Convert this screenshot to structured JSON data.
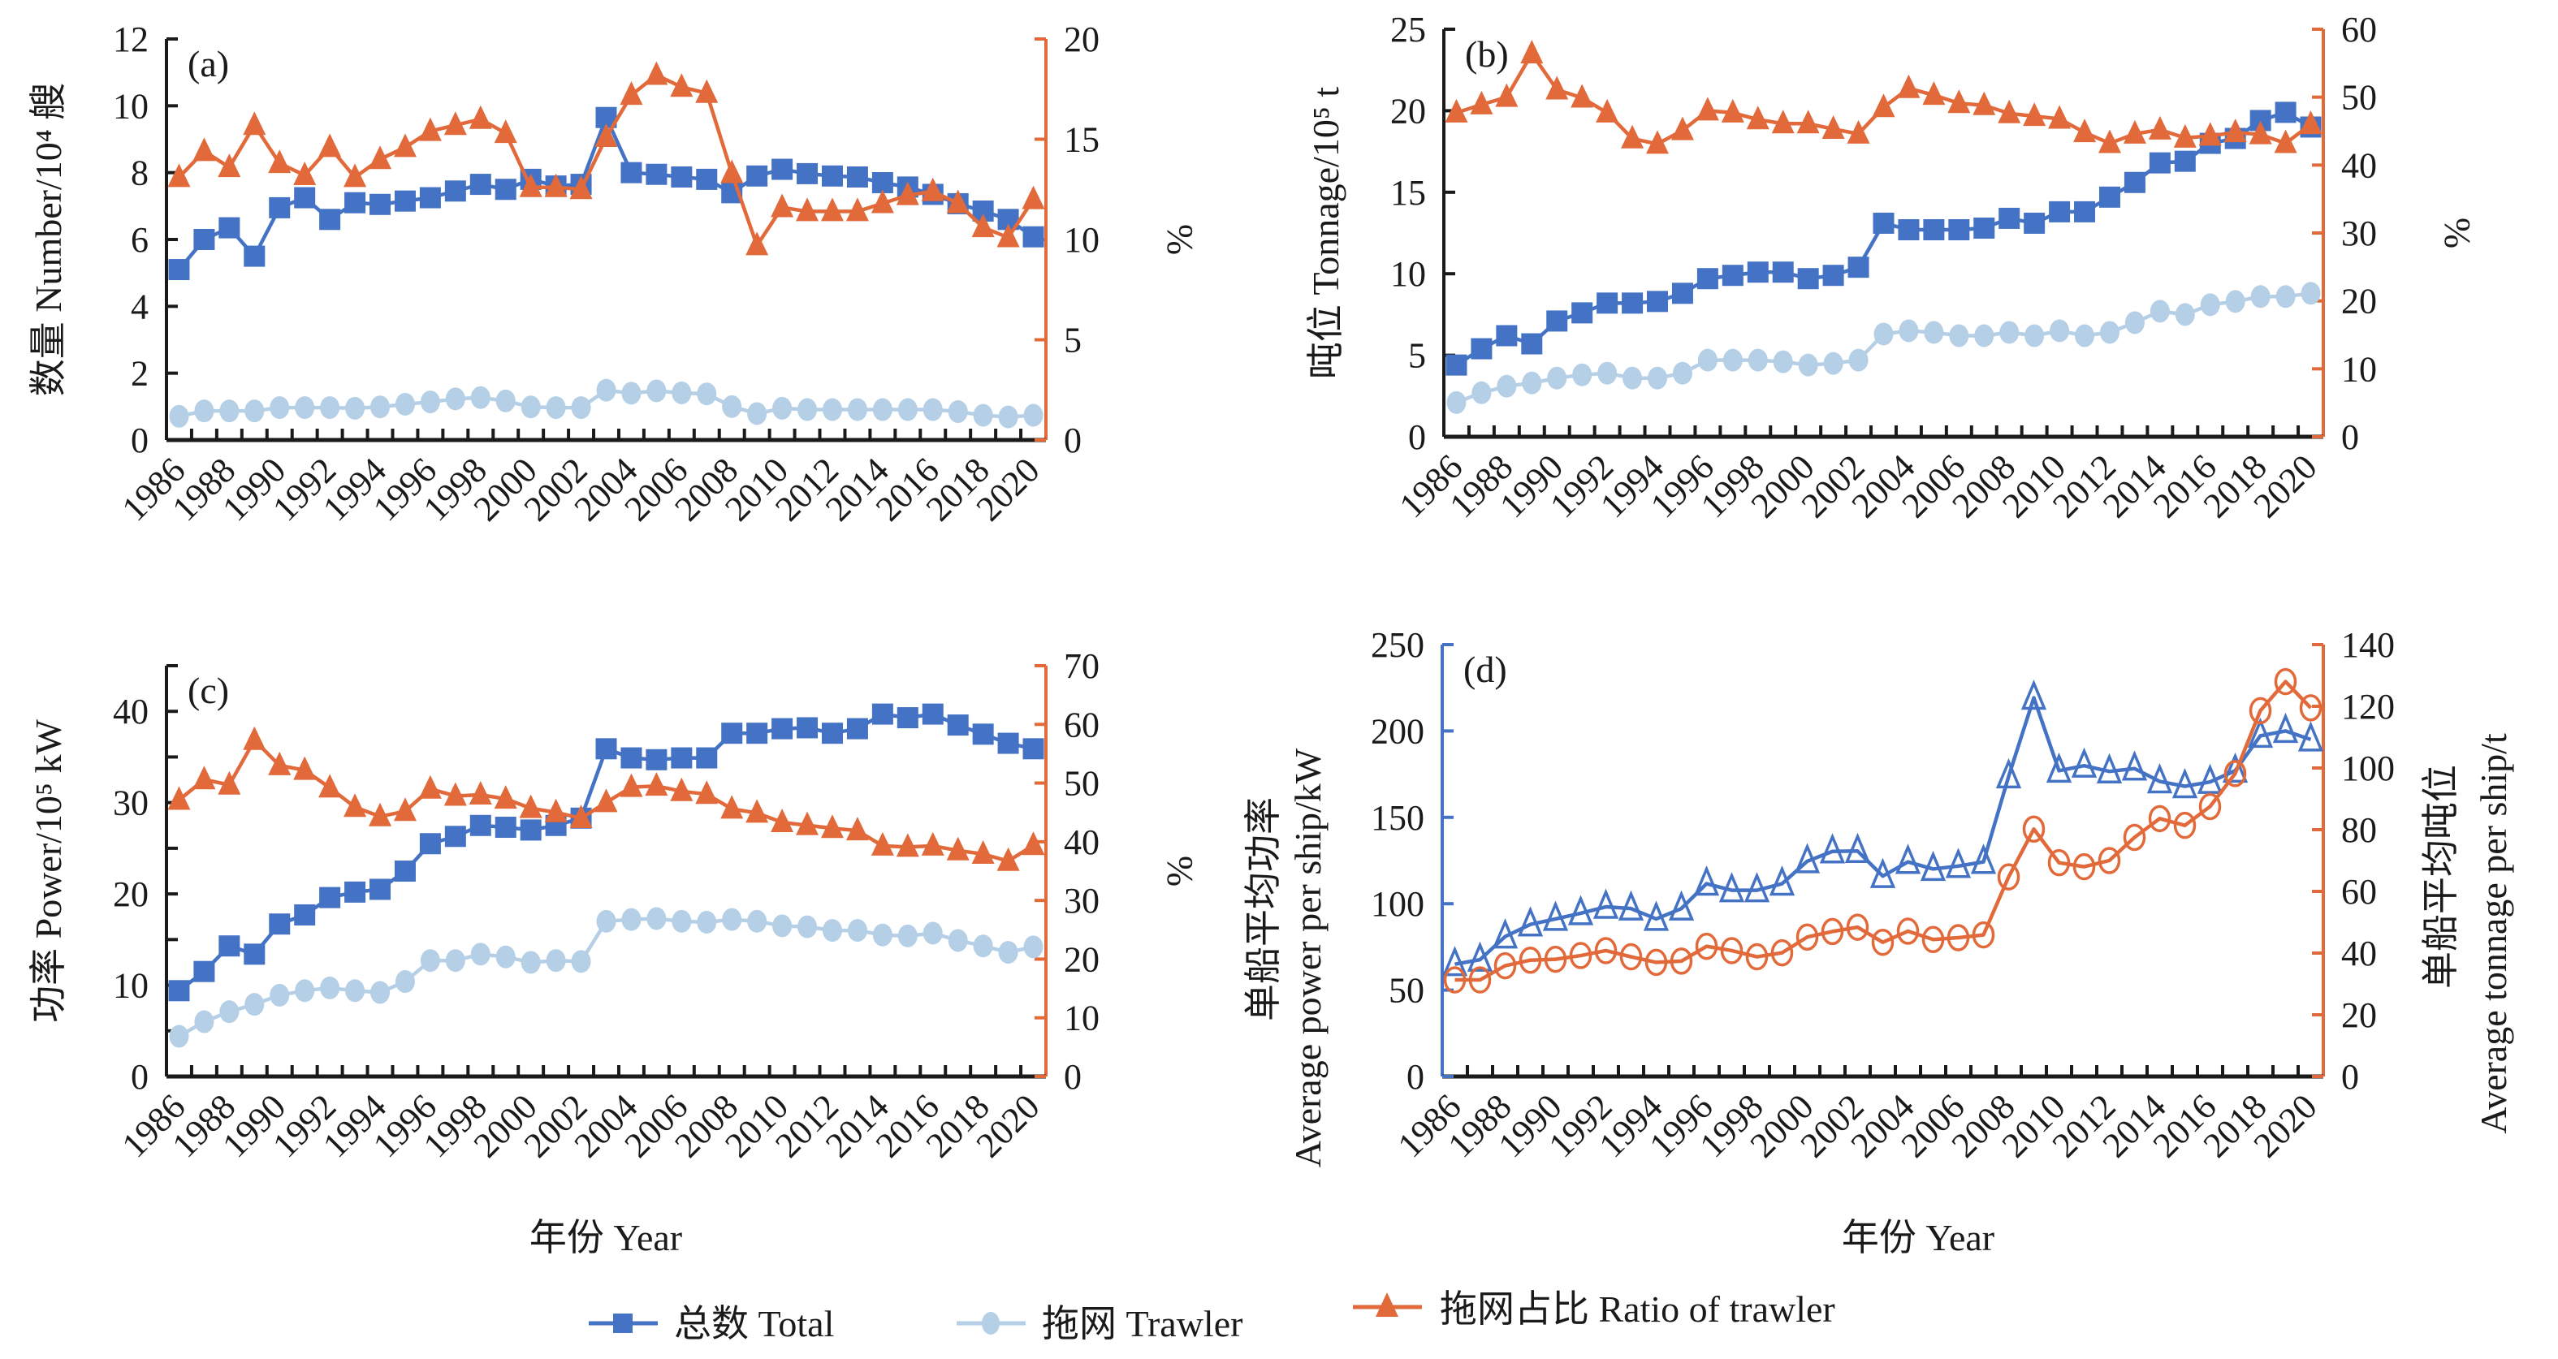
{
  "colors": {
    "total": "#4472C4",
    "trawler": "#B4CFE6",
    "ratio": "#E2693A",
    "axis": "#1a1a1a",
    "avg_power": "#4472C4",
    "avg_tonnage": "#E2693A"
  },
  "legend": {
    "total": "总数 Total",
    "trawler": "拖网 Trawler",
    "ratio": "拖网占比 Ratio of trawler"
  },
  "xaxis_title": "年份 Year",
  "chart_data": [
    {
      "id": "a",
      "type": "line",
      "panel_label": "(a)",
      "title": "",
      "x": [
        1986,
        1987,
        1988,
        1989,
        1990,
        1991,
        1992,
        1993,
        1994,
        1995,
        1996,
        1997,
        1998,
        1999,
        2000,
        2001,
        2002,
        2003,
        2004,
        2005,
        2006,
        2007,
        2008,
        2009,
        2010,
        2011,
        2012,
        2013,
        2014,
        2015,
        2016,
        2017,
        2018,
        2019,
        2020
      ],
      "xtick_labels": [
        "1986",
        "1988",
        "1990",
        "1992",
        "1994",
        "1996",
        "1998",
        "2000",
        "2002",
        "2004",
        "2006",
        "2008",
        "2010",
        "2012",
        "2014",
        "2016",
        "2018",
        "2020"
      ],
      "ylabel": "数量 Number/10⁴ 艘",
      "ylim": [
        0,
        12
      ],
      "yticks": [
        0,
        2,
        4,
        6,
        8,
        10,
        12
      ],
      "y2label": "%",
      "y2lim": [
        0,
        20
      ],
      "y2ticks": [
        0,
        5,
        10,
        15,
        20
      ],
      "series": [
        {
          "name": "总数 Total",
          "axis": "left",
          "marker": "square-filled",
          "color_key": "total",
          "values": [
            5.1,
            6.0,
            6.35,
            5.5,
            6.95,
            7.25,
            6.6,
            7.1,
            7.05,
            7.15,
            7.25,
            7.45,
            7.65,
            7.5,
            7.8,
            7.6,
            7.65,
            9.65,
            8.0,
            7.95,
            7.87,
            7.8,
            7.4,
            7.9,
            8.1,
            7.97,
            7.9,
            7.87,
            7.7,
            7.57,
            7.35,
            7.07,
            6.85,
            6.6,
            6.08
          ]
        },
        {
          "name": "拖网 Trawler",
          "axis": "left",
          "marker": "circle-filled",
          "color_key": "trawler",
          "values": [
            0.71,
            0.87,
            0.87,
            0.87,
            0.97,
            0.97,
            0.97,
            0.95,
            0.99,
            1.07,
            1.14,
            1.23,
            1.27,
            1.17,
            0.99,
            0.97,
            0.97,
            1.49,
            1.4,
            1.47,
            1.41,
            1.38,
            1.0,
            0.79,
            0.95,
            0.91,
            0.91,
            0.91,
            0.91,
            0.91,
            0.91,
            0.85,
            0.74,
            0.69,
            0.74
          ]
        },
        {
          "name": "拖网占比 Ratio of trawler",
          "axis": "right",
          "marker": "triangle-filled",
          "color_key": "ratio",
          "values": [
            13.1,
            14.4,
            13.6,
            15.7,
            13.8,
            13.2,
            14.6,
            13.1,
            14.0,
            14.6,
            15.4,
            15.7,
            16.0,
            15.3,
            12.6,
            12.6,
            12.5,
            15.1,
            17.2,
            18.2,
            17.6,
            17.3,
            13.3,
            9.7,
            11.6,
            11.4,
            11.4,
            11.4,
            11.8,
            12.2,
            12.4,
            11.8,
            10.6,
            10.1,
            12.0
          ]
        }
      ]
    },
    {
      "id": "b",
      "type": "line",
      "panel_label": "(b)",
      "title": "",
      "x": [
        1986,
        1987,
        1988,
        1989,
        1990,
        1991,
        1992,
        1993,
        1994,
        1995,
        1996,
        1997,
        1998,
        1999,
        2000,
        2001,
        2002,
        2003,
        2004,
        2005,
        2006,
        2007,
        2008,
        2009,
        2010,
        2011,
        2012,
        2013,
        2014,
        2015,
        2016,
        2017,
        2018,
        2019,
        2020
      ],
      "xtick_labels": [
        "1986",
        "1988",
        "1990",
        "1992",
        "1994",
        "1996",
        "1998",
        "2000",
        "2002",
        "2004",
        "2006",
        "2008",
        "2010",
        "2012",
        "2014",
        "2016",
        "2018",
        "2020"
      ],
      "ylabel": "吨位 Tonnage/10⁵ t",
      "ylim": [
        0,
        25
      ],
      "yticks": [
        0,
        5,
        10,
        15,
        20,
        25
      ],
      "y2label": "%",
      "y2lim": [
        0,
        60
      ],
      "y2ticks": [
        0,
        10,
        20,
        30,
        40,
        50,
        60
      ],
      "series": [
        {
          "name": "总数 Total",
          "axis": "left",
          "marker": "square-filled",
          "color_key": "total",
          "values": [
            4.4,
            5.4,
            6.2,
            5.7,
            7.1,
            7.6,
            8.2,
            8.2,
            8.3,
            8.8,
            9.7,
            9.9,
            10.1,
            10.1,
            9.7,
            9.9,
            10.4,
            13.1,
            12.7,
            12.7,
            12.7,
            12.8,
            13.4,
            13.1,
            13.8,
            13.8,
            14.7,
            15.6,
            16.8,
            16.9,
            18.0,
            18.3,
            19.4,
            19.9,
            19.0
          ]
        },
        {
          "name": "拖网 Trawler",
          "axis": "left",
          "marker": "circle-filled",
          "color_key": "trawler",
          "values": [
            2.1,
            2.7,
            3.1,
            3.3,
            3.6,
            3.8,
            3.9,
            3.6,
            3.6,
            3.9,
            4.7,
            4.7,
            4.7,
            4.6,
            4.4,
            4.5,
            4.7,
            6.3,
            6.5,
            6.4,
            6.2,
            6.2,
            6.4,
            6.2,
            6.5,
            6.2,
            6.4,
            7.0,
            7.7,
            7.5,
            8.1,
            8.3,
            8.6,
            8.6,
            8.8
          ]
        },
        {
          "name": "拖网占比 Ratio of trawler",
          "axis": "right",
          "marker": "triangle-filled",
          "color_key": "ratio",
          "values": [
            47.7,
            48.9,
            50.0,
            56.4,
            51.1,
            49.9,
            47.7,
            43.9,
            43.1,
            45.1,
            48.0,
            47.7,
            46.7,
            46.1,
            46.1,
            45.3,
            44.6,
            48.5,
            51.3,
            50.3,
            49.1,
            48.8,
            47.6,
            47.2,
            46.8,
            44.8,
            43.2,
            44.6,
            45.2,
            44.0,
            44.3,
            44.8,
            44.5,
            43.2,
            46.0
          ]
        }
      ]
    },
    {
      "id": "c",
      "type": "line",
      "panel_label": "(c)",
      "title": "",
      "x": [
        1986,
        1987,
        1988,
        1989,
        1990,
        1991,
        1992,
        1993,
        1994,
        1995,
        1996,
        1997,
        1998,
        1999,
        2000,
        2001,
        2002,
        2003,
        2004,
        2005,
        2006,
        2007,
        2008,
        2009,
        2010,
        2011,
        2012,
        2013,
        2014,
        2015,
        2016,
        2017,
        2018,
        2019,
        2020
      ],
      "xtick_labels": [
        "1986",
        "1988",
        "1990",
        "1992",
        "1994",
        "1996",
        "1998",
        "2000",
        "2002",
        "2004",
        "2006",
        "2008",
        "2010",
        "2012",
        "2014",
        "2016",
        "2018",
        "2020"
      ],
      "xlabel": "年份 Year",
      "ylabel": "功率 Power/10⁵ kW",
      "ylim": [
        0,
        45
      ],
      "yticks": [
        0,
        10,
        20,
        30,
        40
      ],
      "yminor_ticks": [
        5,
        15,
        25,
        35,
        45
      ],
      "y2label": "%",
      "y2lim": [
        0,
        70
      ],
      "y2ticks": [
        0,
        10,
        20,
        30,
        40,
        50,
        60,
        70
      ],
      "series": [
        {
          "name": "总数 Total",
          "axis": "left",
          "marker": "square-filled",
          "color_key": "total",
          "values": [
            9.4,
            11.5,
            14.3,
            13.4,
            16.7,
            17.7,
            19.6,
            20.2,
            20.5,
            22.5,
            25.5,
            26.3,
            27.5,
            27.3,
            27.0,
            27.5,
            28.3,
            35.9,
            34.9,
            34.7,
            34.9,
            34.9,
            37.6,
            37.6,
            38.1,
            38.2,
            37.6,
            38.1,
            39.7,
            39.3,
            39.7,
            38.5,
            37.5,
            36.5,
            35.9
          ]
        },
        {
          "name": "拖网 Trawler",
          "axis": "left",
          "marker": "circle-filled",
          "color_key": "trawler",
          "values": [
            4.4,
            6.0,
            7.1,
            7.9,
            8.9,
            9.4,
            9.7,
            9.4,
            9.2,
            10.4,
            12.7,
            12.7,
            13.4,
            13.1,
            12.5,
            12.7,
            12.6,
            17.0,
            17.2,
            17.3,
            17.0,
            16.9,
            17.2,
            17.0,
            16.5,
            16.4,
            16.0,
            16.0,
            15.5,
            15.4,
            15.7,
            14.9,
            14.3,
            13.6,
            14.2
          ]
        },
        {
          "name": "拖网占比 Ratio of trawler",
          "axis": "right",
          "marker": "triangle-filled",
          "color_key": "ratio",
          "values": [
            47.1,
            50.6,
            49.7,
            57.3,
            53.0,
            52.2,
            49.2,
            45.9,
            44.3,
            45.2,
            49.0,
            47.8,
            48.0,
            47.3,
            45.7,
            45.0,
            44.0,
            46.7,
            49.3,
            49.5,
            48.6,
            48.1,
            45.6,
            44.9,
            43.3,
            42.8,
            42.3,
            41.9,
            39.3,
            39.1,
            39.3,
            38.5,
            37.9,
            36.7,
            39.4
          ]
        }
      ]
    },
    {
      "id": "d",
      "type": "line",
      "panel_label": "(d)",
      "title": "",
      "x": [
        1986,
        1987,
        1988,
        1989,
        1990,
        1991,
        1992,
        1993,
        1994,
        1995,
        1996,
        1997,
        1998,
        1999,
        2000,
        2001,
        2002,
        2003,
        2004,
        2005,
        2006,
        2007,
        2008,
        2009,
        2010,
        2011,
        2012,
        2013,
        2014,
        2015,
        2016,
        2017,
        2018,
        2019,
        2020
      ],
      "xtick_labels": [
        "1986",
        "1988",
        "1990",
        "1992",
        "1994",
        "1996",
        "1998",
        "2000",
        "2002",
        "2004",
        "2006",
        "2008",
        "2010",
        "2012",
        "2014",
        "2016",
        "2018",
        "2020"
      ],
      "xlabel": "年份 Year",
      "ylabel_cn": "单船平均功率",
      "ylabel_en": "Average power per ship/kW",
      "ylim": [
        0,
        250
      ],
      "yticks": [
        0,
        50,
        100,
        150,
        200,
        250
      ],
      "y2label_cn": "单船平均吨位",
      "y2label_en": "Average tonnage per ship/t",
      "y2lim": [
        0,
        140
      ],
      "y2ticks": [
        0,
        20,
        40,
        60,
        80,
        100,
        120,
        140
      ],
      "series": [
        {
          "name": "单船平均功率 Average power per ship",
          "axis": "left",
          "marker": "triangle-open",
          "color_key": "avg_power",
          "values": [
            65,
            67.6,
            81,
            88,
            91.2,
            94.5,
            98.2,
            97.2,
            91.2,
            97.2,
            111.6,
            107.8,
            107.8,
            111.6,
            124.6,
            130.3,
            130.5,
            116.0,
            124.2,
            120.1,
            121.8,
            124.2,
            173.7,
            219.2,
            177.0,
            179.9,
            176.6,
            178.2,
            170.8,
            168.0,
            170.5,
            177.0,
            197.2,
            200.0,
            195.1
          ]
        },
        {
          "name": "单船平均吨位 Average tonnage per ship",
          "axis": "right",
          "marker": "circle-open",
          "color_key": "avg_tonnage",
          "values": [
            31.3,
            31.3,
            35.9,
            37.7,
            38.0,
            39.2,
            40.8,
            38.8,
            37.0,
            37.4,
            42.2,
            40.8,
            38.8,
            40.1,
            45.2,
            47.0,
            48.4,
            43.5,
            47.1,
            44.4,
            45.0,
            45.9,
            64.7,
            80.2,
            69.3,
            68.0,
            70.0,
            77.5,
            83.6,
            81.4,
            87.5,
            98.2,
            118.6,
            128.0,
            119.5
          ]
        }
      ]
    }
  ]
}
